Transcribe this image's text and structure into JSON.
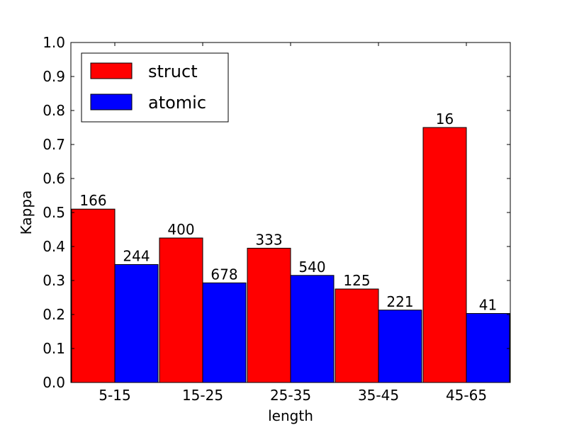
{
  "chart_data": {
    "type": "bar",
    "title": "",
    "xlabel": "length",
    "ylabel": "Kappa",
    "categories": [
      "5-15",
      "15-25",
      "25-35",
      "35-45",
      "45-65"
    ],
    "ylim": [
      0.0,
      1.0
    ],
    "yticks": [
      "0.0",
      "0.1",
      "0.2",
      "0.3",
      "0.4",
      "0.5",
      "0.6",
      "0.7",
      "0.8",
      "0.9",
      "1.0"
    ],
    "grid": false,
    "legend_position": "top-left",
    "series": [
      {
        "name": "struct",
        "color": "#ff0000",
        "values": [
          0.51,
          0.425,
          0.395,
          0.275,
          0.75
        ],
        "labels": [
          "166",
          "400",
          "333",
          "125",
          "16"
        ]
      },
      {
        "name": "atomic",
        "color": "#0000ff",
        "values": [
          0.347,
          0.293,
          0.315,
          0.213,
          0.203
        ],
        "labels": [
          "244",
          "678",
          "540",
          "221",
          "41"
        ]
      }
    ]
  }
}
